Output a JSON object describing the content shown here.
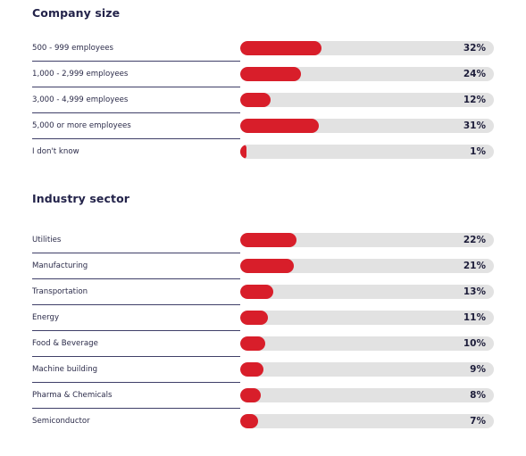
{
  "chart_data": [
    {
      "type": "bar",
      "title": "Company size",
      "categories": [
        "500 - 999 employees",
        "1,000 - 2,999 employees",
        "3,000 - 4,999 employees",
        "5,000 or more employees",
        "I don't know"
      ],
      "values": [
        32,
        24,
        12,
        31,
        1
      ],
      "value_labels": [
        "32%",
        "24%",
        "12%",
        "31%",
        "1%"
      ],
      "unit": "%",
      "orientation": "horizontal",
      "xlim": [
        0,
        100
      ]
    },
    {
      "type": "bar",
      "title": "Industry sector",
      "categories": [
        "Utilities",
        "Manufacturing",
        "Transportation",
        "Energy",
        "Food & Beverage",
        "Machine building",
        "Pharma & Chemicals",
        "Semiconductor"
      ],
      "values": [
        22,
        21,
        13,
        11,
        10,
        9,
        8,
        7
      ],
      "value_labels": [
        "22%",
        "21%",
        "13%",
        "11%",
        "10%",
        "9%",
        "8%",
        "7%"
      ],
      "unit": "%",
      "orientation": "horizontal",
      "xlim": [
        0,
        100
      ]
    }
  ],
  "colors": {
    "bar_fill": "#d81e2a",
    "track": "#e2e2e2",
    "text": "#1d1d3a",
    "divider": "#3f3f68"
  }
}
